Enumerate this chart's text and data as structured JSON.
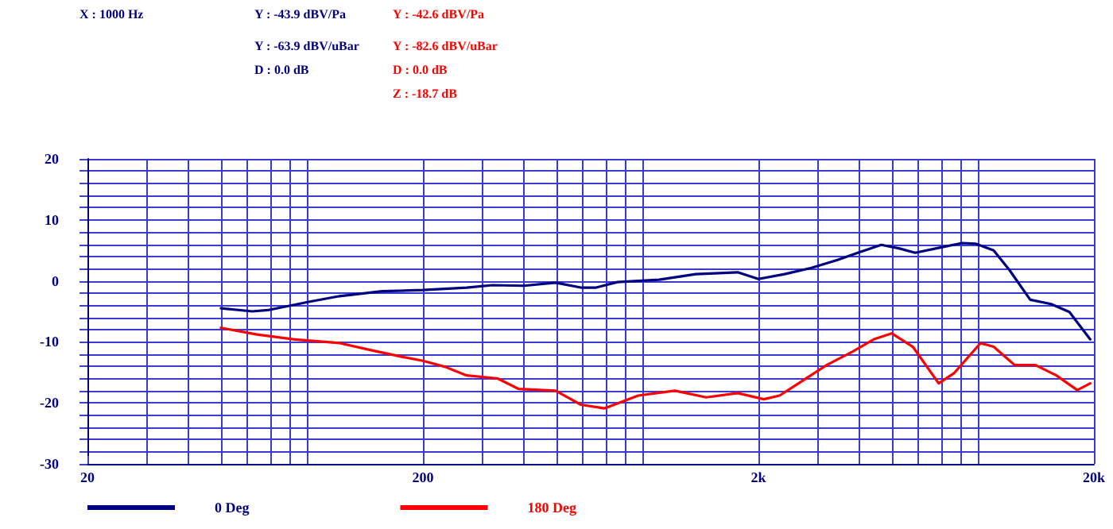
{
  "chart_data": {
    "type": "line",
    "annotations": [
      "X : 1000 Hz",
      "Y : -43.9 dBV/Pa",
      "Y : -63.9 dBV/uBar",
      "D : 0.0 dB",
      "Y : -42.6 dBV/Pa",
      "Y : -82.6 dBV/uBar",
      "D : 0.0 dB",
      "Z : -18.7 dB"
    ],
    "series": [
      {
        "name": "0 Deg",
        "color": "#000080",
        "x": [
          50,
          62,
          69,
          92,
          113,
          151,
          200,
          270,
          322,
          400,
          497,
          591,
          657,
          760,
          1012,
          1301,
          1734,
          2000,
          2393,
          2864,
          3428,
          3957,
          4645,
          5270,
          5865,
          7016,
          8100,
          8870,
          10050,
          11190,
          12920,
          14900,
          16900,
          19500
        ],
        "values": [
          -4.5,
          -5.0,
          -4.8,
          -3.4,
          -2.5,
          -1.7,
          -1.5,
          -1.1,
          -0.7,
          -0.8,
          -0.3,
          -1.1,
          -1.1,
          -0.2,
          0.2,
          1.1,
          1.4,
          0.3,
          1.1,
          2.1,
          3.4,
          4.6,
          5.9,
          5.3,
          4.6,
          5.5,
          6.2,
          6.1,
          5.0,
          1.8,
          -3.1,
          -3.8,
          -5.1,
          -9.6
        ]
      },
      {
        "name": "180 Deg",
        "color": "#ff0000",
        "x": [
          50,
          64,
          83,
          113,
          141,
          175,
          200,
          233,
          270,
          334,
          385,
          497,
          591,
          695,
          877,
          1127,
          1397,
          1734,
          2075,
          2312,
          2668,
          3193,
          3818,
          4408,
          4990,
          5770,
          6890,
          7670,
          9180,
          10050,
          11610,
          13390,
          15450,
          17840,
          19500
        ],
        "values": [
          -7.7,
          -8.8,
          -9.6,
          -10.2,
          -11.4,
          -12.5,
          -13.1,
          -14.1,
          -15.5,
          -16.0,
          -17.7,
          -18.0,
          -20.3,
          -20.9,
          -18.8,
          -18.0,
          -19.1,
          -18.4,
          -19.4,
          -18.8,
          -16.6,
          -13.8,
          -11.6,
          -9.6,
          -8.6,
          -10.8,
          -16.8,
          -15.1,
          -10.2,
          -10.8,
          -13.8,
          -13.8,
          -15.5,
          -17.9,
          -16.8
        ]
      }
    ],
    "log": "x",
    "xlim": [
      20,
      20000
    ],
    "xticks": [
      20,
      {
        "value": 30,
        "label": null
      },
      {
        "value": 40,
        "label": null
      },
      {
        "value": 50,
        "label": null
      },
      {
        "value": 60,
        "label": null
      },
      {
        "value": 70,
        "label": null
      },
      {
        "value": 80,
        "label": null
      },
      {
        "value": 90,
        "label": null
      },
      200,
      {
        "value": 300,
        "label": null
      },
      {
        "value": 400,
        "label": null
      },
      {
        "value": 500,
        "label": null
      },
      {
        "value": 600,
        "label": null
      },
      {
        "value": 700,
        "label": null
      },
      {
        "value": 800,
        "label": null
      },
      {
        "value": 900,
        "label": null
      },
      {
        "value": 2000,
        "label": "2k"
      },
      {
        "value": 3000,
        "label": null
      },
      {
        "value": 4000,
        "label": null
      },
      {
        "value": 5000,
        "label": null
      },
      {
        "value": 6000,
        "label": null
      },
      {
        "value": 7000,
        "label": null
      },
      {
        "value": 8000,
        "label": null
      },
      {
        "value": 9000,
        "label": null
      },
      {
        "value": 20000,
        "label": "20k"
      }
    ],
    "ylim": [
      -30,
      20
    ],
    "yticks": [
      -30,
      {
        "value": -28,
        "label": null
      },
      {
        "value": -26,
        "label": null
      },
      {
        "value": -24,
        "label": null
      },
      {
        "value": -22,
        "label": null
      },
      -20,
      {
        "value": -18,
        "label": null
      },
      {
        "value": -16,
        "label": null
      },
      {
        "value": -14,
        "label": null
      },
      {
        "value": -12,
        "label": null
      },
      -10,
      {
        "value": -8,
        "label": null
      },
      {
        "value": -6,
        "label": null
      },
      {
        "value": -4,
        "label": null
      },
      {
        "value": -2,
        "label": null
      },
      0,
      {
        "value": 2,
        "label": null
      },
      {
        "value": 4,
        "label": null
      },
      {
        "value": 6,
        "label": null
      },
      {
        "value": 8,
        "label": null
      },
      10,
      {
        "value": 12,
        "label": null
      },
      {
        "value": 14,
        "label": null
      },
      {
        "value": 16,
        "label": null
      },
      {
        "value": 18,
        "label": null
      },
      20
    ],
    "grid": true,
    "legend": "bottom",
    "marker": "none",
    "line_style": "solid"
  }
}
